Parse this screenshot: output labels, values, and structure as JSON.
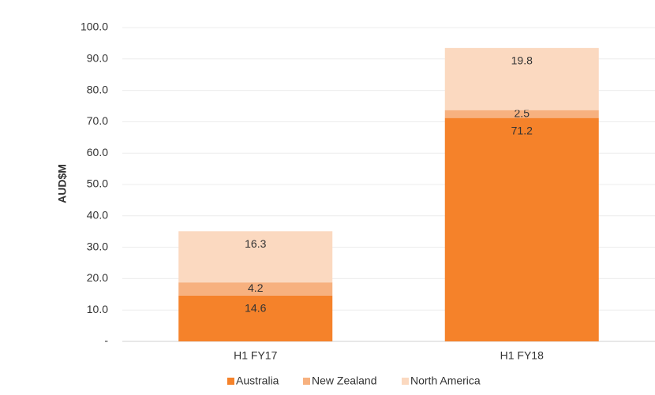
{
  "chart_data": {
    "type": "stacked_bar",
    "y_label": "AUD$M",
    "categories": [
      "H1 FY17",
      "H1 FY18"
    ],
    "series": [
      {
        "name": "Australia",
        "color": "#f5822a",
        "values": [
          14.6,
          71.2
        ]
      },
      {
        "name": "New Zealand",
        "color": "#f7b17f",
        "values": [
          4.2,
          2.5
        ]
      },
      {
        "name": "North America",
        "color": "#fbd9c0",
        "values": [
          16.3,
          19.8
        ]
      }
    ],
    "ylim": [
      0,
      100
    ],
    "yticks": [
      {
        "value": 0,
        "label": "-"
      },
      {
        "value": 10,
        "label": "10.0"
      },
      {
        "value": 20,
        "label": "20.0"
      },
      {
        "value": 30,
        "label": "30.0"
      },
      {
        "value": 40,
        "label": "40.0"
      },
      {
        "value": 50,
        "label": "50.0"
      },
      {
        "value": 60,
        "label": "60.0"
      },
      {
        "value": 70,
        "label": "70.0"
      },
      {
        "value": 80,
        "label": "80.0"
      },
      {
        "value": 90,
        "label": "90.0"
      },
      {
        "value": 100,
        "label": "100.0"
      }
    ],
    "grid": true
  }
}
